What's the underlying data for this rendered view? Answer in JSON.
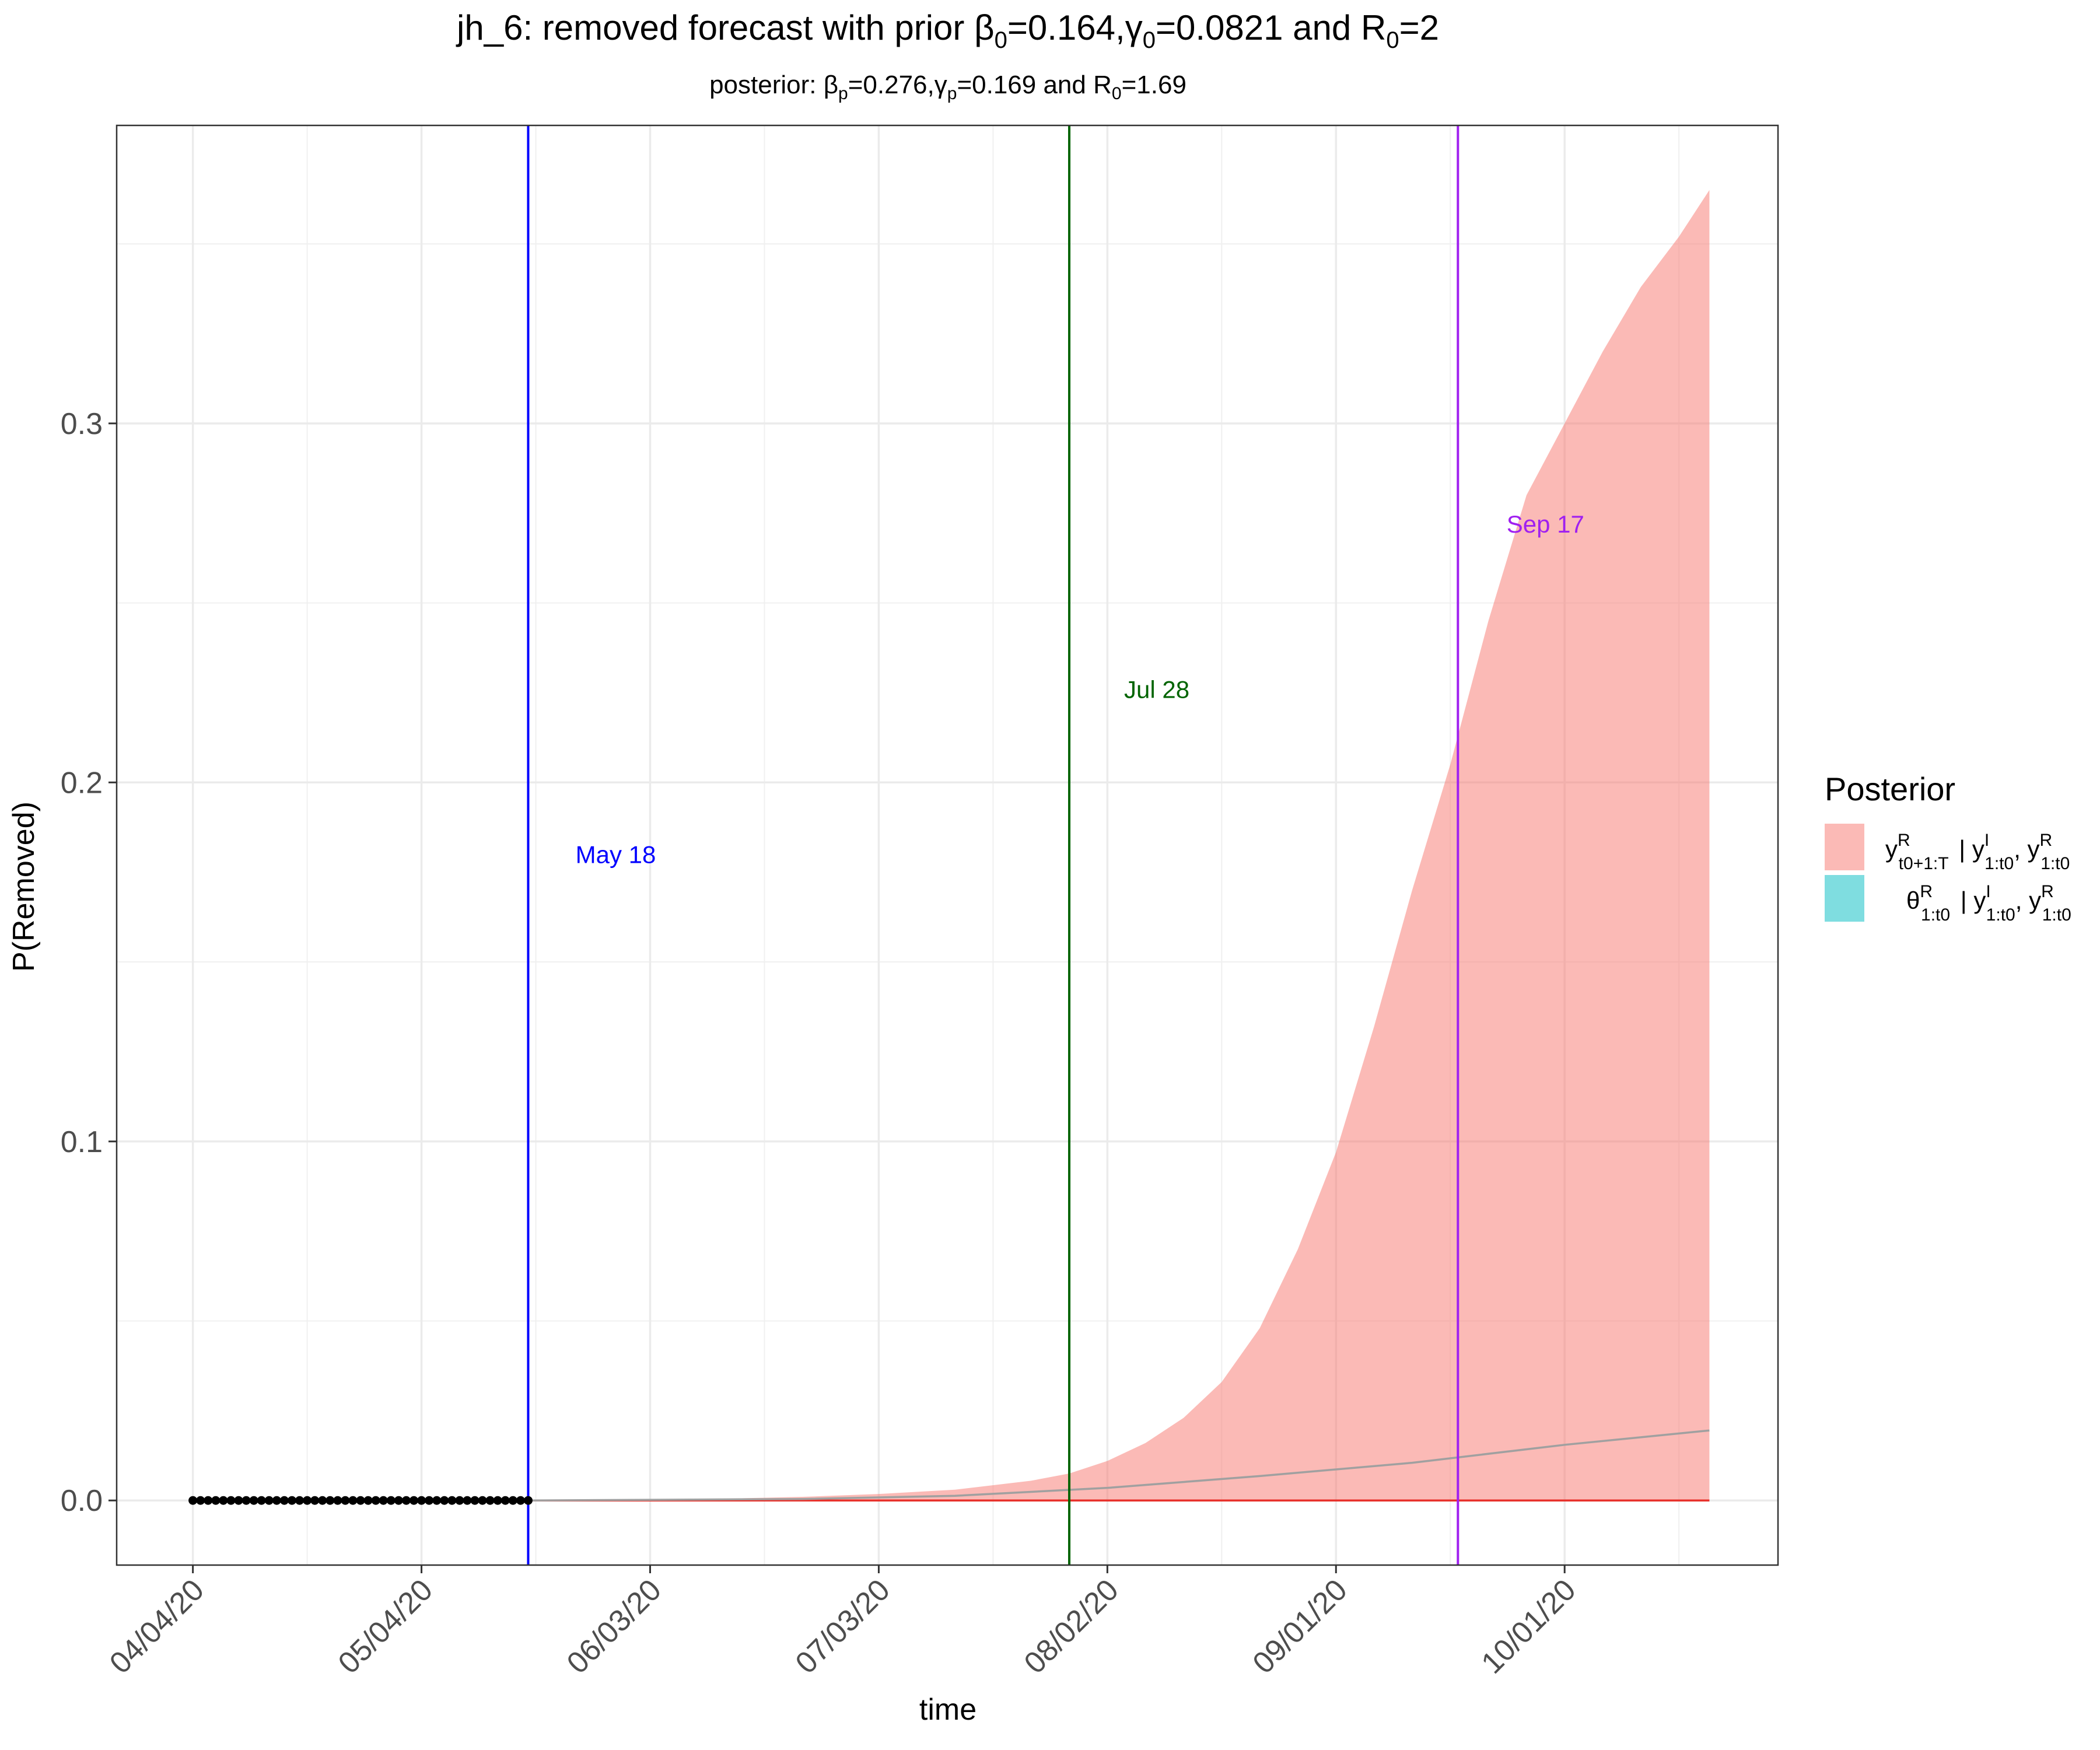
{
  "chart_data": {
    "type": "area",
    "title": {
      "prefix": "jh_6: removed forecast with prior ",
      "beta_sym": "β",
      "beta_sub": "0",
      "beta_val": "=0.164,",
      "gamma_sym": "γ",
      "gamma_sub": "0",
      "gamma_val": "=0.0821 and ",
      "r_sym": "R",
      "r_sub": "0",
      "r_val": "=2"
    },
    "subtitle": {
      "prefix": "posterior: ",
      "beta_sym": "β",
      "beta_sub": "p",
      "beta_val": "=0.276,",
      "gamma_sym": "γ",
      "gamma_sub": "p",
      "gamma_val": "=0.169 and ",
      "r_sym": "R",
      "r_sub": "0",
      "r_val": "=1.69"
    },
    "xlabel": "time",
    "ylabel": "P(Removed)",
    "x_ticks": [
      "04/04/20",
      "05/04/20",
      "06/03/20",
      "07/03/20",
      "08/02/20",
      "09/01/20",
      "10/01/20"
    ],
    "x_tick_days": [
      0,
      30,
      60,
      90,
      120,
      150,
      180
    ],
    "xlim_days": [
      -10,
      208
    ],
    "ylim": [
      -0.018,
      0.383
    ],
    "y_ticks": [
      0.0,
      0.1,
      0.2,
      0.3
    ],
    "y_tick_labels": [
      "0.0",
      "0.1",
      "0.2",
      "0.3"
    ],
    "grid": true,
    "observed_points": {
      "x_start_day": 0,
      "x_end_day": 44,
      "y": 0,
      "color": "#000000"
    },
    "forecast_band": {
      "color": "#F8766D",
      "x_days": [
        44,
        60,
        70,
        80,
        90,
        100,
        110,
        115,
        120,
        125,
        130,
        135,
        140,
        145,
        150,
        155,
        160,
        165,
        170,
        175,
        180,
        185,
        190,
        195,
        199
      ],
      "upper": [
        0.0,
        0.0002,
        0.0005,
        0.001,
        0.0018,
        0.003,
        0.0055,
        0.0075,
        0.011,
        0.016,
        0.023,
        0.033,
        0.048,
        0.07,
        0.097,
        0.132,
        0.17,
        0.205,
        0.245,
        0.28,
        0.3,
        0.32,
        0.338,
        0.352,
        0.365
      ],
      "lower": [
        0,
        0,
        0,
        0,
        0,
        0,
        0,
        0,
        0,
        0,
        0,
        0,
        0,
        0,
        0,
        0,
        0,
        0,
        0,
        0,
        0,
        0,
        0,
        0,
        0
      ]
    },
    "median_line": {
      "color": "#A0A0A0",
      "x_days": [
        44,
        80,
        100,
        120,
        140,
        160,
        180,
        199
      ],
      "y": [
        0.0,
        0.0004,
        0.0013,
        0.0035,
        0.0068,
        0.0105,
        0.0155,
        0.0195
      ]
    },
    "lower_line": {
      "color": "#E8322C",
      "x_start_day": 44,
      "x_end_day": 199,
      "y": 0
    },
    "vlines": [
      {
        "day": 44,
        "label": "May 18",
        "color": "#0000FF",
        "label_y": 0.18
      },
      {
        "day": 115,
        "label": "Jul 28",
        "color": "#006400",
        "label_y": 0.226
      },
      {
        "day": 166,
        "label": "Sep 17",
        "color": "#A020F0",
        "label_y": 0.272
      }
    ],
    "legend": {
      "position": "right",
      "title": "Posterior",
      "entries": [
        {
          "color": "#F8766D",
          "main": "y",
          "main_sup": "R",
          "main_sub": "t0+1:T",
          "cond1": "y",
          "cond1_sup": "I",
          "cond1_sub": "1:t0",
          "cond2": "y",
          "cond2_sup": "R",
          "cond2_sub": "1:t0"
        },
        {
          "color": "#7FDDE0",
          "main": "θ",
          "main_sup": "R",
          "main_sub": "1:t0",
          "cond1": "y",
          "cond1_sup": "I",
          "cond1_sub": "1:t0",
          "cond2": "y",
          "cond2_sup": "R",
          "cond2_sub": "1:t0"
        }
      ]
    }
  }
}
